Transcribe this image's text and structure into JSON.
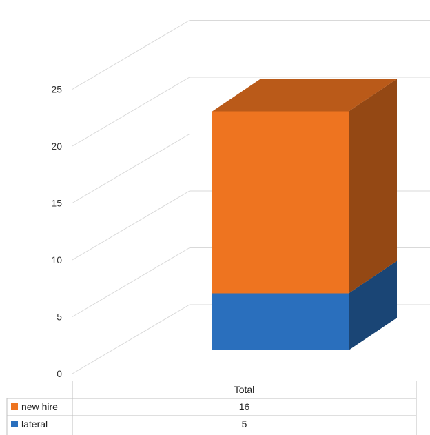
{
  "chart_data": {
    "type": "bar",
    "stacked": true,
    "three_d": true,
    "categories": [
      "Total"
    ],
    "series": [
      {
        "name": "lateral",
        "values": [
          5
        ],
        "color": "#2a6fbd"
      },
      {
        "name": "new hire",
        "values": [
          16
        ],
        "color": "#ee7420"
      }
    ],
    "yticks": [
      0,
      5,
      10,
      15,
      20,
      25
    ],
    "ylim": [
      0,
      25
    ],
    "grid": true,
    "legend": "data-table"
  }
}
